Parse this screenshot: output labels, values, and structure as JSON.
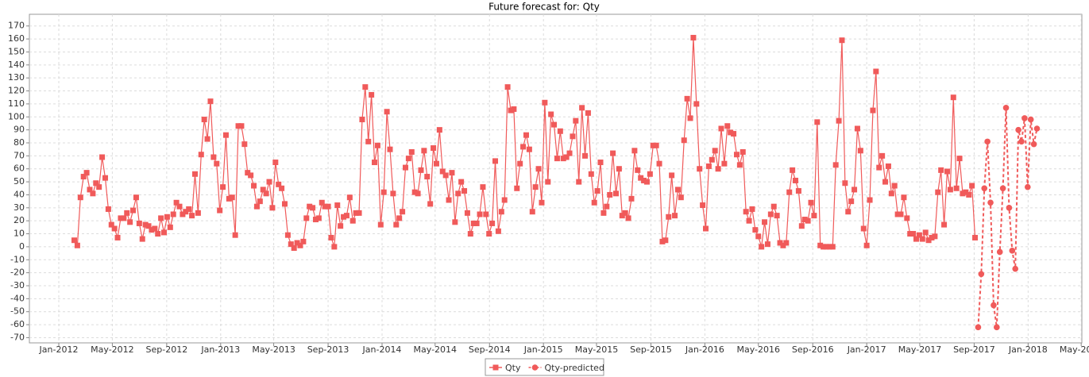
{
  "chart_data": {
    "type": "line",
    "title": "Future forecast for: Qty",
    "xlim": [
      -9.5,
      330.5
    ],
    "xticks": [
      {
        "value": 0,
        "label": "Jan-2012"
      },
      {
        "value": 17.29,
        "label": "May-2012"
      },
      {
        "value": 34.86,
        "label": "Sep-2012"
      },
      {
        "value": 52.29,
        "label": "Jan-2013"
      },
      {
        "value": 69.43,
        "label": "May-2013"
      },
      {
        "value": 87,
        "label": "Sep-2013"
      },
      {
        "value": 104.43,
        "label": "Jan-2014"
      },
      {
        "value": 121.57,
        "label": "May-2014"
      },
      {
        "value": 139.14,
        "label": "Sep-2014"
      },
      {
        "value": 156.57,
        "label": "Jan-2015"
      },
      {
        "value": 173.71,
        "label": "May-2015"
      },
      {
        "value": 191.29,
        "label": "Sep-2015"
      },
      {
        "value": 208.71,
        "label": "Jan-2016"
      },
      {
        "value": 226,
        "label": "May-2016"
      },
      {
        "value": 243.57,
        "label": "Sep-2016"
      },
      {
        "value": 261,
        "label": "Jan-2017"
      },
      {
        "value": 278.14,
        "label": "May-2017"
      },
      {
        "value": 295.71,
        "label": "Sep-2017"
      },
      {
        "value": 313.14,
        "label": "Jan-2018"
      },
      {
        "value": 330.29,
        "label": "May-2018"
      }
    ],
    "ylim": [
      -74,
      179
    ],
    "yticks": [
      -70,
      -60,
      -50,
      -40,
      -30,
      -20,
      -10,
      0,
      10,
      20,
      30,
      40,
      50,
      60,
      70,
      80,
      90,
      100,
      110,
      120,
      130,
      140,
      150,
      160,
      170
    ],
    "grid": true,
    "series": [
      {
        "name": "Qty",
        "color": "#f05a5a",
        "marker": "square",
        "line_style": "solid",
        "x": [
          5,
          6,
          7,
          8,
          9,
          10,
          11,
          12,
          13,
          14,
          15,
          16,
          17,
          18,
          19,
          20,
          21,
          22,
          23,
          24,
          25,
          26,
          27,
          28,
          29,
          30,
          31,
          32,
          33,
          34,
          35,
          36,
          37,
          38,
          39,
          40,
          41,
          42,
          43,
          44,
          45,
          46,
          47,
          48,
          49,
          50,
          51,
          52,
          53,
          54,
          55,
          56,
          57,
          58,
          59,
          60,
          61,
          62,
          63,
          64,
          65,
          66,
          67,
          68,
          69,
          70,
          71,
          72,
          73,
          74,
          75,
          76,
          77,
          78,
          79,
          80,
          81,
          82,
          83,
          84,
          85,
          86,
          87,
          88,
          89,
          90,
          91,
          92,
          93,
          94,
          95,
          96,
          97,
          98,
          99,
          100,
          101,
          102,
          103,
          104,
          105,
          106,
          107,
          108,
          109,
          110,
          111,
          112,
          113,
          114,
          115,
          116,
          117,
          118,
          119,
          120,
          121,
          122,
          123,
          124,
          125,
          126,
          127,
          128,
          129,
          130,
          131,
          132,
          133,
          134,
          135,
          136,
          137,
          138,
          139,
          140,
          141,
          142,
          143,
          144,
          145,
          146,
          147,
          148,
          149,
          150,
          151,
          152,
          153,
          154,
          155,
          156,
          157,
          158,
          159,
          160,
          161,
          162,
          163,
          164,
          165,
          166,
          167,
          168,
          169,
          170,
          171,
          172,
          173,
          174,
          175,
          176,
          177,
          178,
          179,
          180,
          181,
          182,
          183,
          184,
          185,
          186,
          187,
          188,
          189,
          190,
          191,
          192,
          193,
          194,
          195,
          196,
          197,
          198,
          199,
          200,
          201,
          202,
          203,
          204,
          205,
          206,
          207,
          208,
          209,
          210,
          211,
          212,
          213,
          214,
          215,
          216,
          217,
          218,
          219,
          220,
          221,
          222,
          223,
          224,
          225,
          226,
          227,
          228,
          229,
          230,
          231,
          232,
          233,
          234,
          235,
          236,
          237,
          238,
          239,
          240,
          241,
          242,
          243,
          244,
          245,
          246,
          247,
          248,
          249,
          250,
          251,
          252,
          253,
          254,
          255,
          256,
          257,
          258,
          259,
          260,
          261,
          262,
          263,
          264,
          265,
          266,
          267,
          268,
          269,
          270,
          271,
          272,
          273,
          274,
          275,
          276,
          277,
          278,
          279,
          280,
          281,
          282,
          283,
          284,
          285,
          286,
          287,
          288,
          289,
          290,
          291,
          292,
          293,
          294,
          295,
          296
        ],
        "values": [
          5,
          1,
          38,
          54,
          57,
          44,
          41,
          49,
          46,
          69,
          53,
          29,
          17,
          14,
          7,
          22,
          22,
          26,
          19,
          28,
          38,
          18,
          6,
          17,
          16,
          13,
          14,
          10,
          22,
          11,
          23,
          15,
          25,
          34,
          31,
          25,
          27,
          29,
          24,
          56,
          26,
          71,
          98,
          83,
          112,
          69,
          64,
          28,
          46,
          86,
          37,
          38,
          9,
          93,
          93,
          79,
          57,
          55,
          47,
          31,
          35,
          44,
          41,
          50,
          30,
          65,
          48,
          45,
          33,
          9,
          2,
          -1,
          3,
          1,
          4,
          22,
          31,
          30,
          21,
          22,
          34,
          31,
          31,
          7,
          0,
          32,
          16,
          23,
          24,
          38,
          20,
          26,
          26,
          98,
          123,
          81,
          117,
          65,
          78,
          17,
          42,
          104,
          75,
          41,
          17,
          22,
          27,
          61,
          68,
          73,
          42,
          41,
          59,
          74,
          54,
          33,
          76,
          64,
          90,
          58,
          55,
          36,
          57,
          19,
          41,
          50,
          43,
          26,
          10,
          18,
          18,
          25,
          46,
          25,
          10,
          18,
          66,
          12,
          27,
          36,
          123,
          105,
          106,
          45,
          64,
          77,
          86,
          75,
          27,
          46,
          60,
          34,
          111,
          50,
          102,
          94,
          68,
          89,
          68,
          69,
          72,
          85,
          97,
          50,
          107,
          70,
          103,
          56,
          34,
          43,
          65,
          26,
          31,
          40,
          72,
          41,
          60,
          24,
          26,
          22,
          37,
          74,
          59,
          53,
          51,
          50,
          56,
          78,
          78,
          64,
          4,
          5,
          23,
          55,
          24,
          44,
          38,
          82,
          114,
          99,
          161,
          110,
          60,
          32,
          14,
          62,
          67,
          74,
          60,
          91,
          64,
          93,
          88,
          87,
          71,
          63,
          73,
          27,
          20,
          29,
          13,
          8,
          0,
          19,
          2,
          25,
          31,
          24,
          3,
          1,
          3,
          42,
          59,
          51,
          43,
          16,
          21,
          20,
          34,
          24,
          96,
          1,
          0,
          0,
          0,
          0,
          63,
          97,
          159,
          49,
          27,
          35,
          44,
          91,
          74,
          14,
          1,
          36,
          105,
          135,
          61,
          70,
          50,
          62,
          41,
          47,
          25,
          25,
          38,
          22,
          10,
          10,
          6,
          9,
          6,
          11,
          5,
          7,
          8,
          42,
          59,
          17,
          58,
          44,
          115,
          45,
          68,
          41,
          42,
          40,
          47,
          7
        ]
      },
      {
        "name": "Qty-predicted",
        "color": "#f05a5a",
        "marker": "circle",
        "line_style": "dashed",
        "x": [
          297,
          298,
          299,
          300,
          301,
          302,
          303,
          304,
          305,
          306,
          307,
          308,
          309,
          310,
          311,
          312,
          313,
          314,
          315,
          316
        ],
        "values": [
          -62,
          -21,
          45,
          81,
          34,
          -45,
          -62,
          -4,
          45,
          107,
          30,
          -3,
          -17,
          90,
          81,
          99,
          46,
          98,
          79,
          91
        ]
      }
    ]
  }
}
